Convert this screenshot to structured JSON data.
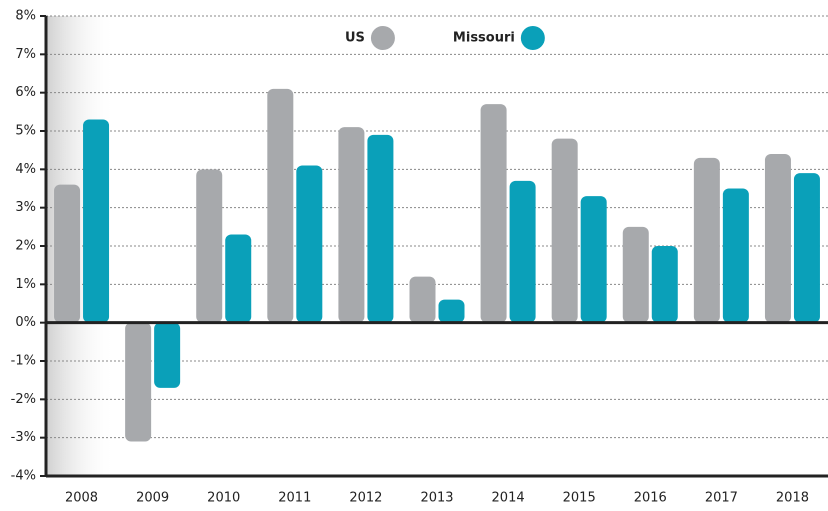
{
  "chart_data": {
    "type": "bar",
    "categories": [
      "2008",
      "2009",
      "2010",
      "2011",
      "2012",
      "2013",
      "2014",
      "2015",
      "2016",
      "2017",
      "2018"
    ],
    "series": [
      {
        "name": "US",
        "color": "#a7a9ac",
        "values": [
          3.6,
          -3.1,
          4.0,
          6.1,
          5.1,
          1.2,
          5.7,
          4.8,
          2.5,
          4.3,
          4.4
        ]
      },
      {
        "name": "Missouri",
        "color": "#0aa0b9",
        "values": [
          5.3,
          -1.7,
          2.3,
          4.1,
          4.9,
          0.6,
          3.7,
          3.3,
          2.0,
          3.5,
          3.9
        ]
      }
    ],
    "ylim": [
      -4,
      8
    ],
    "yticks": [
      {
        "value": -4,
        "label": "-4%"
      },
      {
        "value": -3,
        "label": "-3%"
      },
      {
        "value": -2,
        "label": "-2%"
      },
      {
        "value": -1,
        "label": "-1%"
      },
      {
        "value": 0,
        "label": "0%"
      },
      {
        "value": 1,
        "label": "1%"
      },
      {
        "value": 2,
        "label": "2%"
      },
      {
        "value": 3,
        "label": "3%"
      },
      {
        "value": 4,
        "label": "4%"
      },
      {
        "value": 5,
        "label": "5%"
      },
      {
        "value": 6,
        "label": "6%"
      },
      {
        "value": 7,
        "label": "7%"
      },
      {
        "value": 8,
        "label": "8%"
      }
    ],
    "grid": true,
    "legend": "top"
  }
}
